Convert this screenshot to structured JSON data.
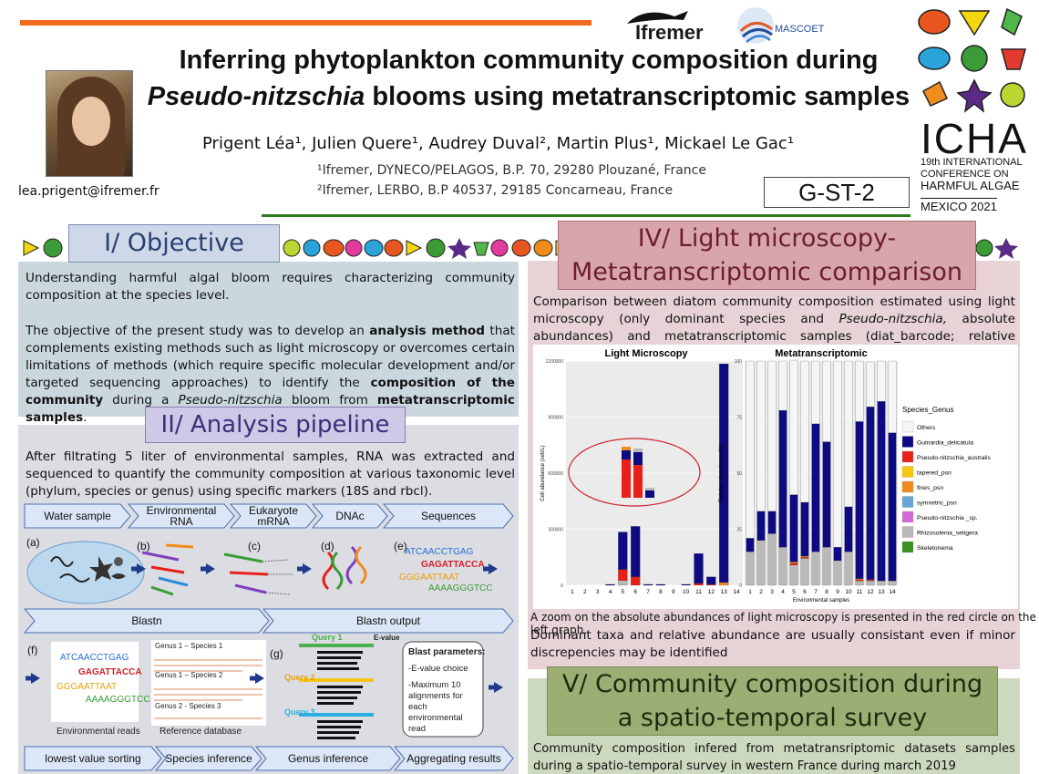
{
  "header": {
    "title_line1": "Inferring phytoplankton community composition during",
    "title_line2_italic": "Pseudo-nitzschia",
    "title_line2_rest": " blooms using metatranscriptomic samples",
    "authors": "Prigent Léa¹, Julien Quere¹, Audrey Duval², Martin Plus¹, Mickael Le Gac¹",
    "affiliation1": "¹Ifremer, DYNECO/PELAGOS, B.P. 70, 29280 Plouzané, France",
    "affiliation2": "²Ifremer, LERBO, B.P 40537, 29185 Concarneau, France",
    "email": "lea.prigent@ifremer.fr",
    "poster_code": "G-ST-2"
  },
  "logos": {
    "ifremer": "Ifremer",
    "mascoet": "MASCOET",
    "icha_big": "ICHA",
    "icha_line1": "19th INTERNATIONAL",
    "icha_line2": "CONFERENCE ON",
    "icha_line3": "HARMFUL ALGAE",
    "icha_line4": "MEXICO 2021"
  },
  "objective": {
    "heading": "I/ Objective",
    "p1": "Understanding harmful algal bloom requires characterizing community composition at the species level.",
    "p2_a": "The objective of the present study was to develop an ",
    "p2_b": "analysis method",
    "p2_c": " that complements existing methods such as light microscopy or overcomes certain limitations of methods (which require specific molecular development and/or targeted sequencing approaches) to identify the ",
    "p2_d": "composition of the community",
    "p2_e": " during a ",
    "p2_f": "Pseudo-nitzschia",
    "p2_g": " bloom from ",
    "p2_h": "metatranscriptomic samples",
    "p2_i": "."
  },
  "pipeline": {
    "heading": "II/ Analysis pipeline",
    "p1": "After filtrating 5 liter of environmental samples, RNA was extracted and sequenced to quantify the community composition at various taxonomic level (phylum, species or genus) using specific markers (18S and rbcl).",
    "steps_row1": [
      "Water sample",
      "Environmental RNA",
      "Eukaryote mRNA",
      "DNAc",
      "Sequences"
    ],
    "steps_row2": [
      "Blastn",
      "Blastn output"
    ],
    "steps_row3": [
      "lowest value sorting",
      "Species inference",
      "Genus inference",
      "Aggregating results"
    ],
    "panel_letters": [
      "(a)",
      "(b)",
      "(c)",
      "(d)",
      "(e)",
      "(f)",
      "(g)"
    ],
    "env_reads_label": "Environmental reads",
    "ref_db_label": "Reference database",
    "ref_db_entries": [
      "Genus 1 – Species 1",
      "Genus 1 – Species 2",
      "Genus 2 - Species 3"
    ],
    "seq_words": [
      "ATCAACCTGAG",
      "GAGATTACCA",
      "GGGAATTAAT",
      "AAAAGGGTCC"
    ],
    "queries": [
      "Query 1",
      "Query 2",
      "Query 3"
    ],
    "evalue_label": "E-value",
    "blast_params_title": "Blast parameters:",
    "blast_params_1": "-E-value choice",
    "blast_params_2": "-Maximum 10 alignments for each environmental read"
  },
  "micro": {
    "heading_line1": "IV/ Light microscopy-",
    "heading_line2": "Metatranscriptomic comparison",
    "p1_a": "Comparison between diatom community composition estimated using light microscopy (only dominant species and ",
    "p1_b": "Pseudo-nitzschia,",
    "p1_c": " absolute abundances) and metatranscriptomic samples (diat_barcode; relative abundances).",
    "zoom_note": "A zoom on the absolute abundances of light microscopy is presented in the red circle on the left graph.",
    "p2": "Dominant taxa and relative abundance are usually consistant even if minor discrepencies may be identified"
  },
  "community": {
    "heading_line1": "V/ Community composition during",
    "heading_line2": "a spatio-temporal survey",
    "p1": "Community composition infered from metatransriptomic datasets samples during a spatio-temporal survey in western France during march 2019"
  },
  "colors": {
    "Others": "#f5f5f5",
    "Guinardia_delicatula": "#0d0a82",
    "Pseudo-nitzschia_australis": "#e8201a",
    "tapered_psn": "#f9c80e",
    "fines_psn": "#f08c1c",
    "symnetric_psn": "#6aa3d5",
    "Pseudo-nitzschia_sp.": "#d36ad6",
    "Rhizosolenia_setigera": "#b9b9b9",
    "Skeletonema": "#3a8f20"
  },
  "chart_data": [
    {
      "type": "bar",
      "title": "Light Microscopy",
      "ylabel": "Cell abundance (cell/L)",
      "xlabel": "",
      "categories": [
        "1",
        "2",
        "3",
        "4",
        "5",
        "6",
        "7",
        "8",
        "9",
        "10",
        "11",
        "12",
        "13",
        "14"
      ],
      "ylim": [
        0,
        1200000
      ],
      "yticks": [
        "0",
        "300000",
        "600000",
        "900000",
        "1200000"
      ],
      "series": [
        {
          "name": "Rhizosolenia_setigera",
          "values": [
            0,
            0,
            0,
            0,
            25000,
            0,
            0,
            0,
            0,
            0,
            0,
            0,
            0,
            0
          ]
        },
        {
          "name": "fines_psn",
          "values": [
            0,
            0,
            0,
            0,
            0,
            0,
            0,
            0,
            0,
            0,
            0,
            0,
            15000,
            0
          ]
        },
        {
          "name": "Pseudo-nitzschia_australis",
          "values": [
            0,
            0,
            0,
            0,
            60000,
            45000,
            0,
            0,
            0,
            0,
            10000,
            5000,
            0,
            0
          ]
        },
        {
          "name": "Guinardia_delicatula",
          "values": [
            0,
            0,
            0,
            5000,
            200000,
            270000,
            5000,
            5000,
            0,
            5000,
            160000,
            40000,
            1170000,
            0
          ]
        }
      ]
    },
    {
      "type": "bar",
      "title": "Metatranscriptomic",
      "ylabel": "Relative abundance (%)",
      "xlabel": "Environmental samples",
      "categories": [
        "1",
        "2",
        "3",
        "4",
        "5",
        "6",
        "7",
        "8",
        "9",
        "10",
        "11",
        "12",
        "13",
        "14"
      ],
      "ylim": [
        0,
        100
      ],
      "yticks": [
        "0",
        "25",
        "50",
        "75",
        "100"
      ],
      "series": [
        {
          "name": "Rhizosolenia_setigera",
          "values": [
            15,
            20,
            23,
            17,
            9,
            12,
            15,
            17,
            11,
            15,
            2,
            2,
            2,
            2
          ]
        },
        {
          "name": "Pseudo-nitzschia_australis",
          "values": [
            0,
            0,
            0,
            0,
            0.8,
            0.5,
            0,
            0,
            0,
            0,
            0.5,
            0.3,
            0,
            0
          ]
        },
        {
          "name": "fines_psn",
          "values": [
            0,
            0,
            0,
            0,
            0.6,
            0.5,
            0,
            0,
            0,
            0,
            0.5,
            0.3,
            0,
            0
          ]
        },
        {
          "name": "Guinardia_delicatula",
          "values": [
            6,
            13,
            10,
            61,
            30,
            24,
            57,
            47,
            6,
            20,
            70,
            77,
            80,
            66
          ]
        },
        {
          "name": "Others",
          "values": [
            79,
            67,
            67,
            22,
            60,
            63,
            28,
            36,
            83,
            65,
            27,
            20,
            18,
            32
          ]
        }
      ]
    }
  ],
  "legend": {
    "title": "Species_Genus",
    "items": [
      "Others",
      "Guinardia_delicatula",
      "Pseudo-nitzschia_australis",
      "tapered_psn",
      "fines_psn",
      "symnetric_psn",
      "Pseudo-nitzschia _sp.",
      "Rhizosolenia_setigera",
      "Skeletonema"
    ]
  }
}
